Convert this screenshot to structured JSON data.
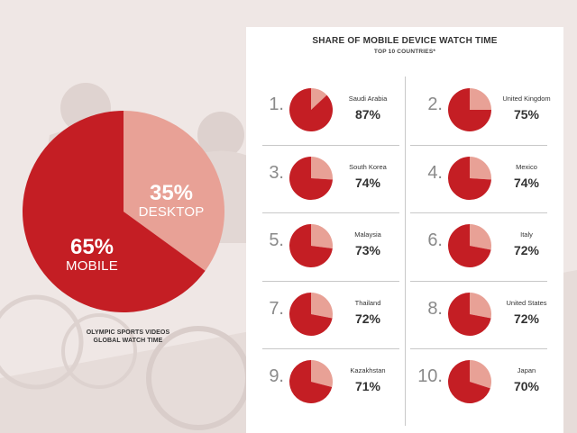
{
  "colors": {
    "mobile": "#c41e24",
    "desktop": "#e8a196",
    "background": "#efe8e6",
    "panel": "#ffffff"
  },
  "global": {
    "mobile_pct": "65%",
    "mobile_label": "MOBILE",
    "desktop_pct": "35%",
    "desktop_label": "DESKTOP",
    "caption_line1": "OLYMPIC SPORTS VIDEOS",
    "caption_line2": "GLOBAL WATCH TIME"
  },
  "panel": {
    "title": "SHARE OF MOBILE DEVICE WATCH TIME",
    "subtitle": "TOP 10 COUNTRIES*"
  },
  "countries": [
    {
      "rank": "1.",
      "name": "Saudi Arabia",
      "share": "87%"
    },
    {
      "rank": "2.",
      "name": "United Kingdom",
      "share": "75%"
    },
    {
      "rank": "3.",
      "name": "South Korea",
      "share": "74%"
    },
    {
      "rank": "4.",
      "name": "Mexico",
      "share": "74%"
    },
    {
      "rank": "5.",
      "name": "Malaysia",
      "share": "73%"
    },
    {
      "rank": "6.",
      "name": "Italy",
      "share": "72%"
    },
    {
      "rank": "7.",
      "name": "Thailand",
      "share": "72%"
    },
    {
      "rank": "8.",
      "name": "United States",
      "share": "72%"
    },
    {
      "rank": "9.",
      "name": "Kazakhstan",
      "share": "71%"
    },
    {
      "rank": "10.",
      "name": "Japan",
      "share": "70%"
    }
  ],
  "chart_data": [
    {
      "type": "pie",
      "categories": [
        "MOBILE",
        "DESKTOP"
      ],
      "values": [
        65,
        35
      ],
      "title": "OLYMPIC SPORTS VIDEOS GLOBAL WATCH TIME"
    },
    {
      "type": "pie",
      "title": "SHARE OF MOBILE DEVICE WATCH TIME",
      "subtitle": "TOP 10 COUNTRIES*",
      "categories": [
        "Saudi Arabia",
        "United Kingdom",
        "South Korea",
        "Mexico",
        "Malaysia",
        "Italy",
        "Thailand",
        "United States",
        "Kazakhstan",
        "Japan"
      ],
      "values": [
        87,
        75,
        74,
        74,
        73,
        72,
        72,
        72,
        71,
        70
      ]
    }
  ]
}
